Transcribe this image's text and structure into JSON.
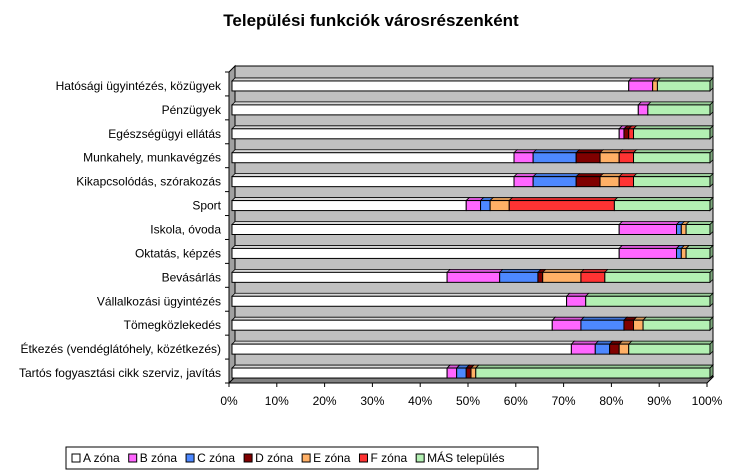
{
  "chart_data": {
    "type": "bar",
    "orientation": "horizontal",
    "stacked": "percent",
    "title": "Települési funkciók városrészenként",
    "categories": [
      "Hatósági ügyintézés, közügyek",
      "Pénzügyek",
      "Egészségügyi ellátás",
      "Munkahely, munkavégzés",
      "Kikapcsolódás, szórakozás",
      "Sport",
      "Iskola, óvoda",
      "Oktatás, képzés",
      "Bevásárlás",
      "Vállalkozási ügyintézés",
      "Tömegközlekedés",
      "Étkezés (vendéglátóhely, közétkezés)",
      "Tartós fogyasztási cikk szerviz, javítás"
    ],
    "series": [
      {
        "name": "A zóna",
        "color": "#ffffff",
        "values": [
          83,
          85,
          81,
          59,
          59,
          49,
          81,
          81,
          45,
          70,
          67,
          71,
          45
        ]
      },
      {
        "name": "B zóna",
        "color": "#ff66ff",
        "values": [
          5,
          2,
          1,
          4,
          4,
          3,
          12,
          12,
          11,
          4,
          6,
          5,
          2
        ]
      },
      {
        "name": "C zóna",
        "color": "#4d88ff",
        "values": [
          0,
          0,
          0,
          9,
          9,
          2,
          1,
          1,
          8,
          0,
          9,
          3,
          2
        ]
      },
      {
        "name": "D zóna",
        "color": "#800000",
        "values": [
          0,
          0,
          1,
          5,
          5,
          0,
          0,
          0,
          1,
          0,
          2,
          2,
          1
        ]
      },
      {
        "name": "E zóna",
        "color": "#ffb066",
        "values": [
          1,
          0,
          0,
          4,
          4,
          4,
          1,
          1,
          8,
          0,
          2,
          2,
          1
        ]
      },
      {
        "name": "F zóna",
        "color": "#ff3333",
        "values": [
          0,
          0,
          1,
          3,
          3,
          22,
          0,
          0,
          5,
          0,
          0,
          0,
          0
        ]
      },
      {
        "name": "MÁS település",
        "color": "#b3f0b3",
        "values": [
          11,
          13,
          16,
          16,
          16,
          20,
          5,
          5,
          22,
          26,
          14,
          17,
          49
        ]
      }
    ],
    "xlim": [
      0,
      100
    ],
    "x_ticks": [
      "0%",
      "10%",
      "20%",
      "30%",
      "40%",
      "50%",
      "60%",
      "70%",
      "80%",
      "90%",
      "100%"
    ],
    "grid": false,
    "legend_position": "bottom",
    "plot_background": "#c0c0c0"
  }
}
